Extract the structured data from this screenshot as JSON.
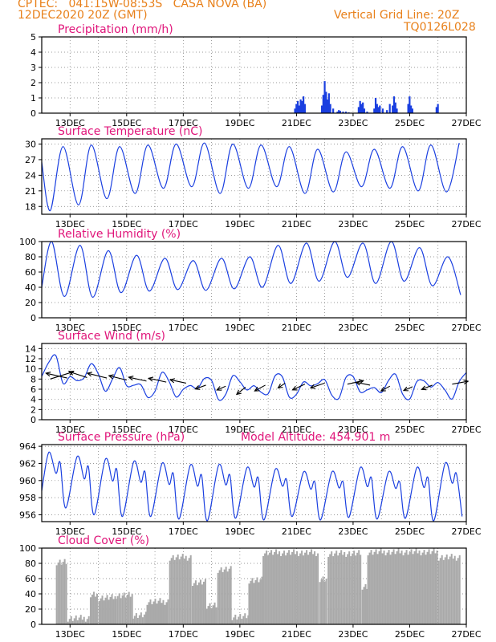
{
  "header": {
    "line1_left": "CPTEC:   041:15W-08:53S   CASA NOVA (BA)",
    "line2_left": "12DEC2020 20Z (GMT)",
    "line1_right": "Vertical Grid Line: 20Z",
    "line2_right": "TQ0126L028"
  },
  "colors": {
    "header": "#e8801a",
    "title": "#e0157a",
    "line": "#1a3fe0",
    "bar": "#1a3fe0",
    "cloud": "#a9a9a9"
  },
  "x_ticks": [
    "13DEC",
    "15DEC",
    "17DEC",
    "19DEC",
    "21DEC",
    "23DEC",
    "25DEC",
    "27DEC"
  ],
  "model_altitude": "Model Altitude: 454.901 m",
  "chart_data": [
    {
      "type": "bar",
      "title": "Precipitation (mm/h)",
      "ylim": [
        0,
        5
      ],
      "yticks": [
        "0",
        "1",
        "2",
        "3",
        "4",
        "5"
      ],
      "grid": true,
      "x": [
        20.95,
        21.0,
        21.05,
        21.1,
        21.15,
        21.2,
        21.25,
        21.3,
        21.9,
        21.95,
        22.0,
        22.05,
        22.1,
        22.15,
        22.2,
        22.3,
        22.45,
        22.5,
        22.55,
        22.65,
        22.75,
        22.85,
        23.2,
        23.25,
        23.3,
        23.35,
        23.4,
        23.5,
        23.75,
        23.8,
        23.85,
        23.9,
        23.95,
        24.05,
        24.2,
        24.3,
        24.4,
        24.45,
        24.5,
        24.55,
        24.95,
        25.0,
        25.05,
        25.1,
        25.95,
        26.0
      ],
      "values": [
        0.3,
        0.6,
        0.8,
        0.5,
        0.9,
        0.8,
        1.1,
        0.6,
        0.5,
        1.2,
        2.1,
        1.4,
        0.9,
        1.3,
        0.6,
        0.3,
        0.1,
        0.2,
        0.15,
        0.1,
        0.1,
        0.05,
        0.4,
        0.8,
        0.6,
        0.7,
        0.3,
        0.1,
        0.3,
        1.0,
        0.6,
        0.4,
        0.5,
        0.3,
        0.2,
        0.6,
        0.5,
        1.1,
        0.7,
        0.3,
        0.6,
        1.1,
        0.5,
        0.3,
        0.4,
        0.6
      ]
    },
    {
      "type": "line",
      "title": "Surface Temperature (nC)",
      "ylim": [
        16.5,
        31
      ],
      "yticks": [
        "18",
        "21",
        "24",
        "27",
        "30"
      ],
      "grid": true,
      "min_t": [
        17.2,
        18.3,
        19.5,
        20.5,
        21.5,
        21.8,
        20.5,
        21.5,
        21.8,
        20.5,
        20.8,
        21.8,
        21.5,
        21.0,
        20.8
      ],
      "max_t": [
        29.5,
        29.8,
        29.5,
        29.8,
        30.0,
        30.2,
        30.0,
        29.8,
        29.5,
        29.0,
        28.5,
        29.0,
        29.5,
        29.8,
        30.2
      ]
    },
    {
      "type": "line",
      "title": "Relative Humidity (%)",
      "ylim": [
        0,
        100
      ],
      "yticks": [
        "0",
        "20",
        "40",
        "60",
        "80",
        "100"
      ],
      "grid": true,
      "min_rh": [
        28,
        27,
        33,
        35,
        37,
        36,
        38,
        40,
        45,
        48,
        53,
        45,
        48,
        42,
        30
      ],
      "max_rh": [
        100,
        95,
        88,
        82,
        78,
        75,
        78,
        80,
        95,
        98,
        100,
        98,
        100,
        92,
        80
      ]
    },
    {
      "type": "line",
      "title": "Surface Wind (m/s)",
      "ylim": [
        0,
        15
      ],
      "yticks": [
        "0",
        "2",
        "4",
        "6",
        "8",
        "10",
        "12",
        "14"
      ],
      "grid": true,
      "wind_vectors": [
        {
          "x": 12.3,
          "y": 8.0,
          "u": 1.3,
          "v": 1.5
        },
        {
          "x": 12.9,
          "y": 8.2,
          "u": -1.2,
          "v": 1.0
        },
        {
          "x": 13.6,
          "y": 8.3,
          "u": -1.0,
          "v": 1.2
        },
        {
          "x": 14.3,
          "y": 8.2,
          "u": -1.1,
          "v": 1.0
        },
        {
          "x": 15.0,
          "y": 7.8,
          "u": -1.0,
          "v": 0.9
        },
        {
          "x": 15.7,
          "y": 7.6,
          "u": -1.0,
          "v": 0.8
        },
        {
          "x": 16.4,
          "y": 7.4,
          "u": -1.0,
          "v": 0.8
        },
        {
          "x": 17.1,
          "y": 7.2,
          "u": -0.9,
          "v": 0.7
        },
        {
          "x": 17.8,
          "y": 6.8,
          "u": -0.6,
          "v": -0.8
        },
        {
          "x": 18.5,
          "y": 6.6,
          "u": -0.5,
          "v": -0.8
        },
        {
          "x": 19.2,
          "y": 6.4,
          "u": -0.5,
          "v": -1.5
        },
        {
          "x": 19.9,
          "y": 6.8,
          "u": -0.6,
          "v": -1.2
        },
        {
          "x": 20.6,
          "y": 7.2,
          "u": -0.4,
          "v": -1.0
        },
        {
          "x": 21.3,
          "y": 7.0,
          "u": -0.7,
          "v": -1.2
        },
        {
          "x": 22.0,
          "y": 7.2,
          "u": -0.8,
          "v": -1.0
        },
        {
          "x": 22.8,
          "y": 7.0,
          "u": 0.9,
          "v": 0.7
        },
        {
          "x": 23.6,
          "y": 6.8,
          "u": -0.8,
          "v": 0.6
        },
        {
          "x": 24.3,
          "y": 6.6,
          "u": -0.5,
          "v": -1.0
        },
        {
          "x": 25.1,
          "y": 6.5,
          "u": -0.5,
          "v": -0.8
        },
        {
          "x": 25.8,
          "y": 6.8,
          "u": -0.6,
          "v": -0.9
        },
        {
          "x": 26.5,
          "y": 7.0,
          "u": 0.9,
          "v": 0.6
        }
      ]
    },
    {
      "type": "line",
      "title": "Surface Pressure (hPa)",
      "ylim": [
        955.2,
        964.2
      ],
      "yticks": [
        "956",
        "958",
        "960",
        "962",
        "964"
      ],
      "grid": true,
      "hi": [
        963.3,
        962.8,
        962.5,
        962.2,
        962.0,
        961.8,
        961.8,
        961.5,
        961.3,
        961.0,
        961.0,
        961.5,
        961.0,
        961.5,
        962.0
      ],
      "lo": [
        956.8,
        956.0,
        955.8,
        955.8,
        955.5,
        955.3,
        955.6,
        955.4,
        955.8,
        955.4,
        955.7,
        955.5,
        955.6,
        955.3,
        955.8
      ]
    },
    {
      "type": "area",
      "title": "Cloud Cover (%)",
      "ylim": [
        0,
        100
      ],
      "yticks": [
        "0",
        "20",
        "40",
        "60",
        "80",
        "100"
      ],
      "grid": true,
      "segments": [
        {
          "x0": 12.5,
          "x1": 12.9,
          "y": 82
        },
        {
          "x0": 12.9,
          "x1": 13.7,
          "y": 8
        },
        {
          "x0": 13.7,
          "x1": 14.0,
          "y": 40
        },
        {
          "x0": 14.0,
          "x1": 14.6,
          "y": 35
        },
        {
          "x0": 14.6,
          "x1": 15.2,
          "y": 38
        },
        {
          "x0": 15.2,
          "x1": 15.7,
          "y": 12
        },
        {
          "x0": 15.7,
          "x1": 16.5,
          "y": 30
        },
        {
          "x0": 16.5,
          "x1": 17.3,
          "y": 88
        },
        {
          "x0": 17.3,
          "x1": 17.8,
          "y": 55
        },
        {
          "x0": 17.8,
          "x1": 18.2,
          "y": 25
        },
        {
          "x0": 18.2,
          "x1": 18.7,
          "y": 72
        },
        {
          "x0": 18.7,
          "x1": 19.3,
          "y": 10
        },
        {
          "x0": 19.3,
          "x1": 19.8,
          "y": 58
        },
        {
          "x0": 19.8,
          "x1": 21.8,
          "y": 94
        },
        {
          "x0": 21.8,
          "x1": 22.1,
          "y": 60
        },
        {
          "x0": 22.1,
          "x1": 23.3,
          "y": 93
        },
        {
          "x0": 23.3,
          "x1": 23.5,
          "y": 50
        },
        {
          "x0": 23.5,
          "x1": 26.0,
          "y": 95
        },
        {
          "x0": 26.0,
          "x1": 26.8,
          "y": 88
        }
      ]
    }
  ]
}
